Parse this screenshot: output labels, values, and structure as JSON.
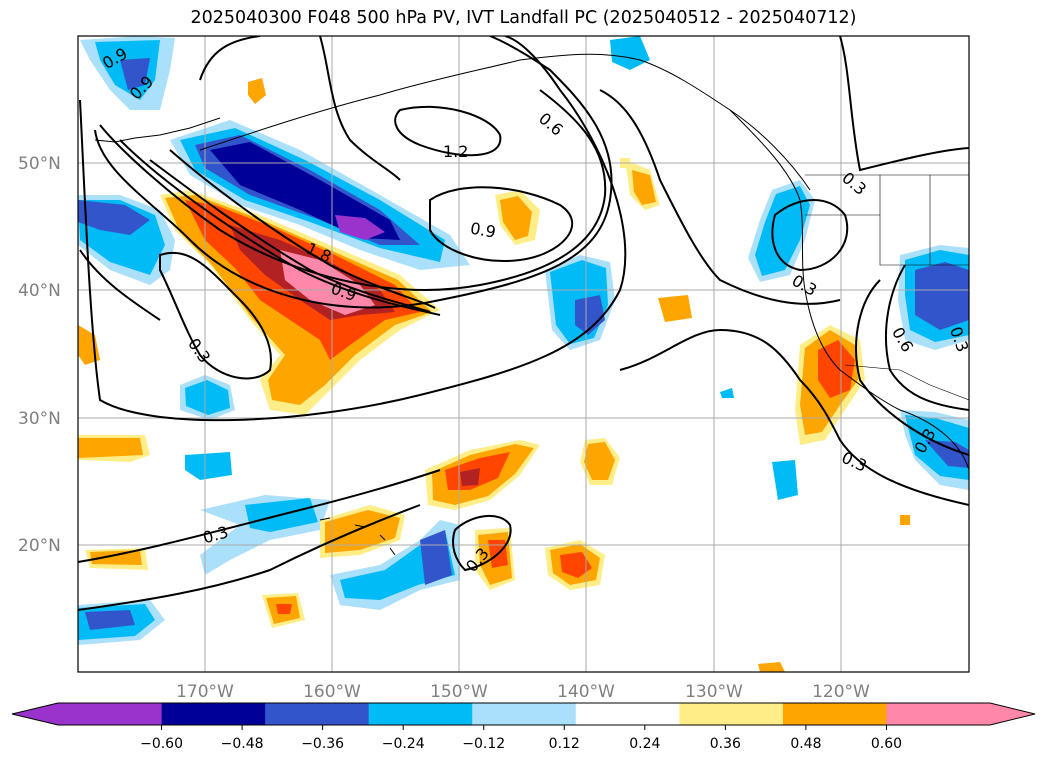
{
  "title": "2025040300 F048 500 hPa PV, IVT Landfall PC (2025040512 - 2025040712)",
  "map": {
    "lat_labels": [
      "50°N",
      "40°N",
      "30°N",
      "20°N"
    ],
    "lon_labels": [
      "170°W",
      "160°W",
      "150°W",
      "140°W",
      "130°W",
      "120°W"
    ],
    "contour_labels": [
      "0.9",
      "0.9",
      "0.6",
      "1.2",
      "0.9",
      "1.8",
      "0.9",
      "0.3",
      "0.3",
      "0.3",
      "0.3",
      "0.6",
      "0.3",
      "0.3",
      "0.3",
      "0.3"
    ]
  },
  "colorbar": {
    "ticks": [
      "−0.60",
      "−0.48",
      "−0.36",
      "−0.24",
      "−0.12",
      "0.12",
      "0.24",
      "0.36",
      "0.48",
      "0.60"
    ],
    "colors": [
      "#9933cc",
      "#000099",
      "#3355cc",
      "#00bbf5",
      "#aae0fa",
      "#ffffff",
      "#ffee88",
      "#ffa500",
      "#ff4500",
      "#b22222",
      "#ff88aa"
    ]
  },
  "colors": {
    "orange": "#ffa500",
    "yellow": "#ffee88",
    "red_orange": "#ff4500",
    "dark_red": "#b22222",
    "pink": "#ff88aa",
    "cyan": "#00bbf5",
    "light_blue": "#aae0fa",
    "royal_blue": "#3355cc",
    "navy": "#000099",
    "purple": "#9933cc",
    "grid": "#aaaaaa"
  }
}
